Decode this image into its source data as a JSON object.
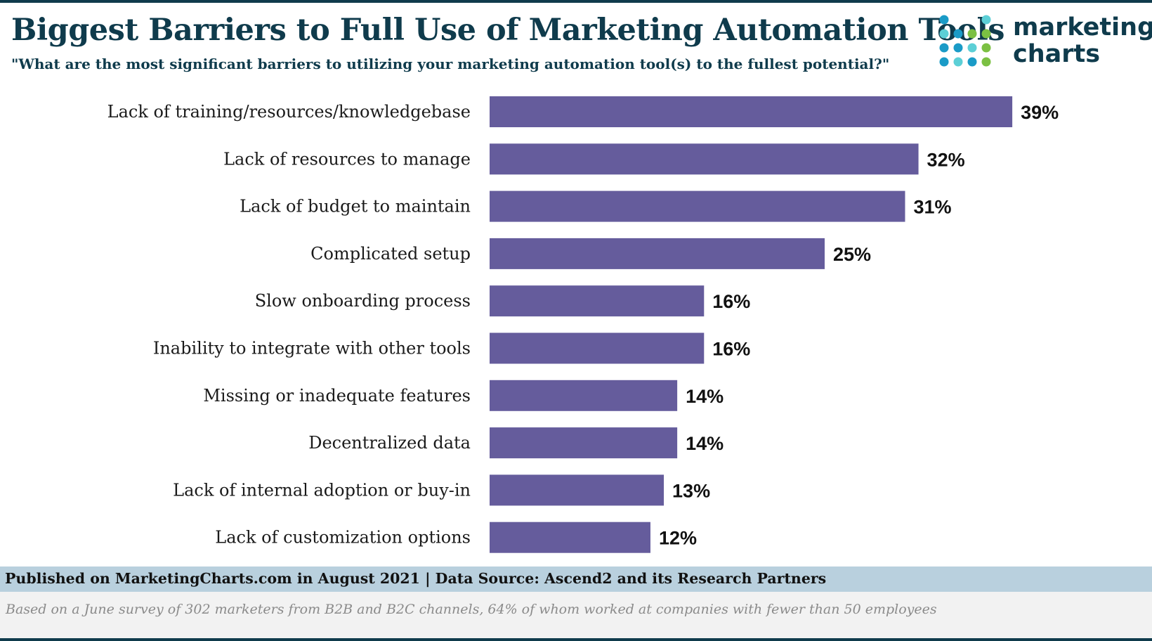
{
  "header": {
    "title": "Biggest Barriers to Full Use of Marketing Automation Tools",
    "subtitle": "\"What are the most significant barriers to utilizing your marketing automation tool(s) to the fullest potential?\""
  },
  "logo": {
    "line1": "marketing",
    "line2": "charts",
    "dot_colors": [
      "#1a9bc7",
      "#5ccfd6",
      "#7bc043"
    ]
  },
  "footer": {
    "source": "Published on MarketingCharts.com in August 2021 | Data Source: Ascend2 and its Research Partners",
    "note": "Based on a June survey of 302 marketers from B2B and B2C channels, 64% of whom worked at companies with fewer than 50 employees"
  },
  "colors": {
    "bar": "#655c9c",
    "title": "#0f3b4c",
    "source_band": "#b9d0de"
  },
  "chart_data": {
    "type": "bar",
    "orientation": "horizontal",
    "categories": [
      "Lack of training/resources/knowledgebase",
      "Lack of resources to manage",
      "Lack of budget to maintain",
      "Complicated setup",
      "Slow onboarding process",
      "Inability to integrate with other tools",
      "Missing or inadequate features",
      "Decentralized data",
      "Lack of internal adoption or buy-in",
      "Lack of customization options"
    ],
    "values": [
      39,
      32,
      31,
      25,
      16,
      16,
      14,
      14,
      13,
      12
    ],
    "value_labels": [
      "39%",
      "32%",
      "31%",
      "25%",
      "16%",
      "16%",
      "14%",
      "14%",
      "13%",
      "12%"
    ],
    "unit": "%",
    "xlim": [
      0,
      39
    ],
    "grid": false,
    "legend": "none"
  }
}
